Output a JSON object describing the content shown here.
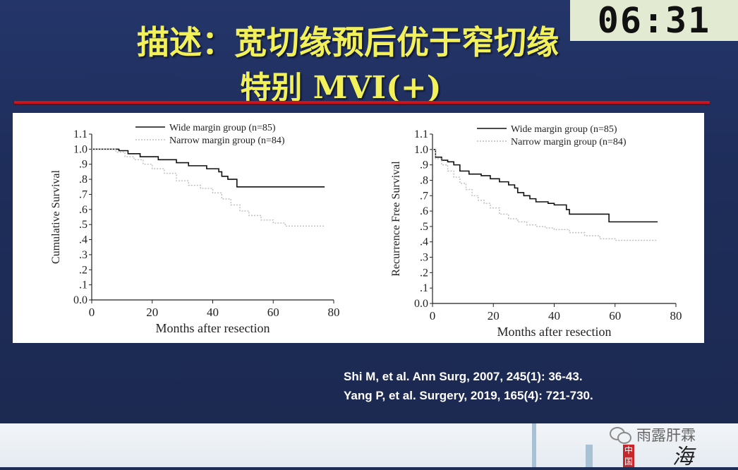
{
  "timer": "06:31",
  "title_line1": "描述：宽切缘预后优于窄切缘",
  "title_line2": "特别 MVI(+)",
  "references": [
    "Shi M, et al. Ann Surg, 2007, 245(1): 36-43.",
    "Yang P, et al. Surgery, 2019, 165(4): 721-730."
  ],
  "watermark": "雨露肝霖",
  "calligraphy": "海",
  "stamp": "中国",
  "colors": {
    "title": "#f3f15a",
    "background": "#1f2e55",
    "divider": "#c8141c",
    "wide_line": "#111111",
    "narrow_line": "#bdbdbd"
  },
  "chart_data": [
    {
      "type": "line",
      "xlabel": "Months after resection",
      "ylabel": "Cumulative Survival",
      "xlim": [
        0,
        80
      ],
      "ylim": [
        0,
        1.1
      ],
      "xticks": [
        "0",
        "20",
        "40",
        "60",
        "80"
      ],
      "yticks": [
        "0.0",
        ".1",
        ".2",
        ".3",
        ".4",
        ".5",
        ".6",
        ".7",
        ".8",
        ".9",
        "1.0",
        "1.1"
      ],
      "grid": false,
      "legend": "top-center",
      "series": [
        {
          "name": "Wide margin group (n=85)",
          "style": "solid",
          "points": [
            [
              0,
              1.0
            ],
            [
              9,
              0.99
            ],
            [
              12,
              0.97
            ],
            [
              16,
              0.95
            ],
            [
              22,
              0.93
            ],
            [
              28,
              0.91
            ],
            [
              32,
              0.89
            ],
            [
              38,
              0.87
            ],
            [
              42,
              0.85
            ],
            [
              43,
              0.82
            ],
            [
              45,
              0.8
            ],
            [
              48,
              0.8
            ],
            [
              48,
              0.75
            ],
            [
              77,
              0.75
            ]
          ]
        },
        {
          "name": "Narrow margin group (n=84)",
          "style": "dotted",
          "points": [
            [
              0,
              1.0
            ],
            [
              8,
              0.98
            ],
            [
              11,
              0.95
            ],
            [
              14,
              0.93
            ],
            [
              17,
              0.9
            ],
            [
              20,
              0.87
            ],
            [
              24,
              0.84
            ],
            [
              28,
              0.79
            ],
            [
              32,
              0.76
            ],
            [
              36,
              0.74
            ],
            [
              40,
              0.71
            ],
            [
              43,
              0.67
            ],
            [
              46,
              0.63
            ],
            [
              49,
              0.59
            ],
            [
              52,
              0.56
            ],
            [
              56,
              0.53
            ],
            [
              60,
              0.51
            ],
            [
              64,
              0.49
            ],
            [
              77,
              0.49
            ]
          ]
        }
      ]
    },
    {
      "type": "line",
      "xlabel": "Months after resection",
      "ylabel": "Recurrence Free Survival",
      "xlim": [
        0,
        80
      ],
      "ylim": [
        0,
        1.1
      ],
      "xticks": [
        "0",
        "20",
        "40",
        "60",
        "80"
      ],
      "yticks": [
        "0.0",
        ".1",
        ".2",
        ".3",
        ".4",
        ".5",
        ".6",
        ".7",
        ".8",
        ".9",
        "1.0",
        "1.1"
      ],
      "grid": false,
      "legend": "top-center",
      "series": [
        {
          "name": "Wide margin group (n=85)",
          "style": "solid",
          "points": [
            [
              0,
              1.0
            ],
            [
              1,
              0.95
            ],
            [
              3,
              0.93
            ],
            [
              5,
              0.92
            ],
            [
              7,
              0.9
            ],
            [
              9,
              0.86
            ],
            [
              12,
              0.84
            ],
            [
              16,
              0.83
            ],
            [
              19,
              0.81
            ],
            [
              22,
              0.79
            ],
            [
              25,
              0.77
            ],
            [
              27,
              0.75
            ],
            [
              28,
              0.72
            ],
            [
              30,
              0.7
            ],
            [
              32,
              0.68
            ],
            [
              34,
              0.66
            ],
            [
              38,
              0.65
            ],
            [
              40,
              0.64
            ],
            [
              44,
              0.61
            ],
            [
              45,
              0.58
            ],
            [
              52,
              0.58
            ],
            [
              58,
              0.58
            ],
            [
              58,
              0.53
            ],
            [
              74,
              0.53
            ]
          ]
        },
        {
          "name": "Narrow margin group (n=84)",
          "style": "dotted",
          "points": [
            [
              0,
              1.0
            ],
            [
              1,
              0.94
            ],
            [
              3,
              0.9
            ],
            [
              5,
              0.86
            ],
            [
              7,
              0.82
            ],
            [
              9,
              0.78
            ],
            [
              11,
              0.74
            ],
            [
              13,
              0.7
            ],
            [
              15,
              0.67
            ],
            [
              17,
              0.65
            ],
            [
              19,
              0.62
            ],
            [
              22,
              0.58
            ],
            [
              25,
              0.55
            ],
            [
              28,
              0.53
            ],
            [
              31,
              0.51
            ],
            [
              34,
              0.5
            ],
            [
              37,
              0.49
            ],
            [
              40,
              0.48
            ],
            [
              45,
              0.46
            ],
            [
              50,
              0.44
            ],
            [
              55,
              0.42
            ],
            [
              60,
              0.41
            ],
            [
              74,
              0.41
            ]
          ]
        }
      ]
    }
  ]
}
